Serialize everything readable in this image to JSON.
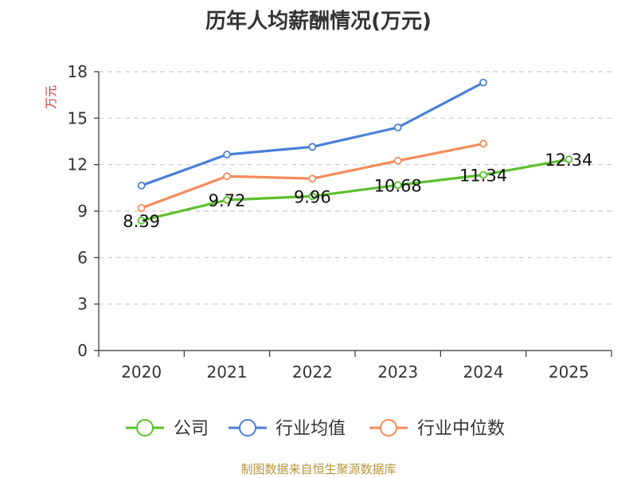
{
  "chart_data": {
    "type": "line",
    "title": "历年人均薪酬情况(万元)",
    "ylabel": "万元",
    "xlabel": "",
    "ylim": [
      0,
      18
    ],
    "yticks": [
      0,
      3,
      6,
      9,
      12,
      15,
      18
    ],
    "categories": [
      "2020",
      "2021",
      "2022",
      "2023",
      "2024",
      "2025"
    ],
    "grid": true,
    "legend_position": "bottom",
    "series": [
      {
        "name": "公司",
        "color": "#5cc02c",
        "values": [
          8.39,
          9.72,
          9.96,
          10.68,
          11.34,
          12.34
        ],
        "labels": [
          "8.39",
          "9.72",
          "9.96",
          "10.68",
          "11.34",
          "12.34"
        ]
      },
      {
        "name": "行业均值",
        "color": "#4a7fd8",
        "values": [
          10.65,
          12.65,
          13.15,
          14.4,
          17.3,
          null
        ]
      },
      {
        "name": "行业中位数",
        "color": "#f48c5c",
        "values": [
          9.2,
          11.25,
          11.1,
          12.25,
          13.35,
          null
        ]
      }
    ],
    "source": "制图数据来自恒生聚源数据库"
  }
}
